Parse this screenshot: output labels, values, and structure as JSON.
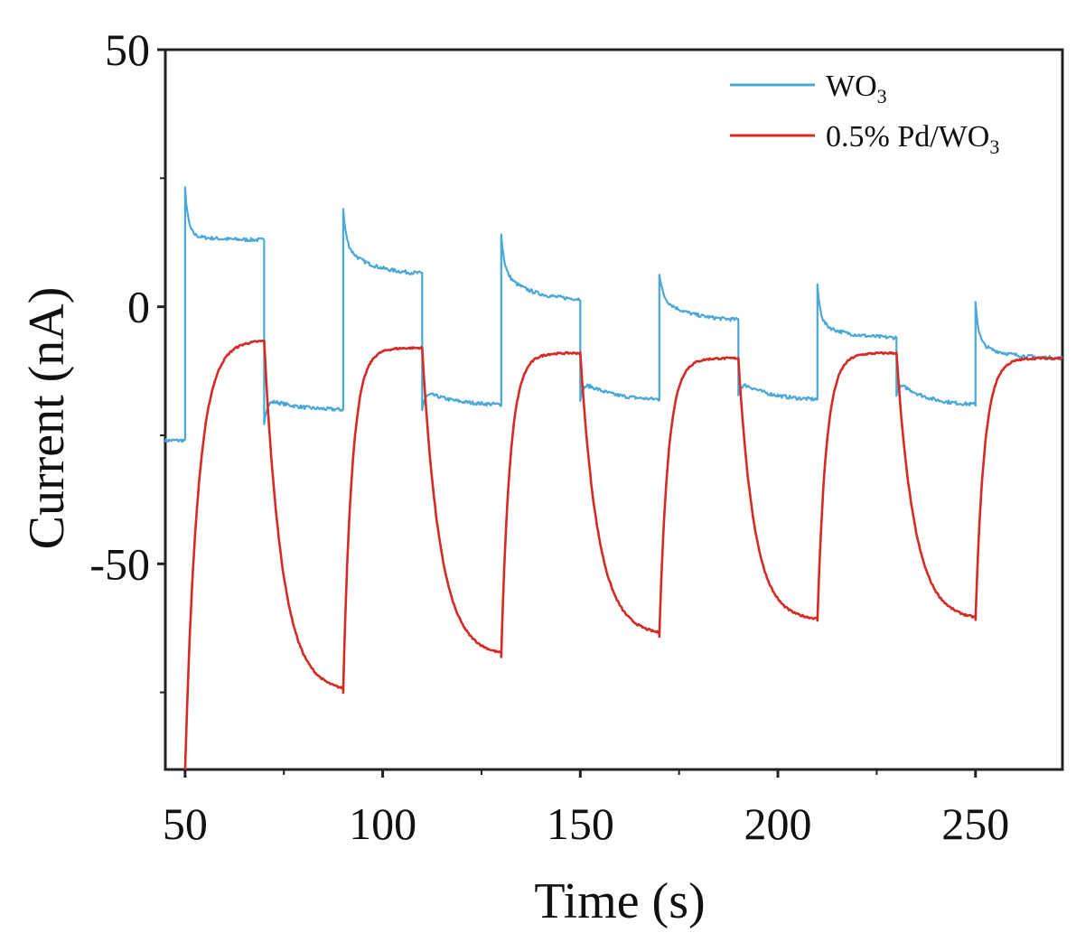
{
  "chart_data": {
    "type": "line",
    "xlabel": "Time (s)",
    "ylabel": "Current (nA)",
    "xlim": [
      45,
      272
    ],
    "ylim": [
      -90,
      50
    ],
    "xticks": [
      50,
      100,
      150,
      200,
      250
    ],
    "yticks": [
      50,
      0,
      -50
    ],
    "x_minor_ticks": [
      75,
      125,
      175,
      225
    ],
    "y_minor_ticks": [
      25,
      -25,
      -75
    ],
    "legend_position": "top-right",
    "light_period_s": 20,
    "series": [
      {
        "name": "WO3",
        "legend_main": "WO",
        "legend_sub": "3",
        "color": "#4aa8d8",
        "segments": [
          {
            "t0": 45,
            "t1": 50,
            "start": -26.0,
            "end": -26.0,
            "spike": 0
          },
          {
            "t0": 50,
            "t1": 70,
            "start": 14.0,
            "end": 13.0,
            "spike": 9
          },
          {
            "t0": 70,
            "t1": 90,
            "start": -17.5,
            "end": -20.0,
            "spike": -5
          },
          {
            "t0": 90,
            "t1": 110,
            "start": 12.0,
            "end": 6.5,
            "spike": 7
          },
          {
            "t0": 110,
            "t1": 130,
            "start": -16.0,
            "end": -19.0,
            "spike": -4
          },
          {
            "t0": 130,
            "t1": 150,
            "start": 7.0,
            "end": 1.5,
            "spike": 7
          },
          {
            "t0": 150,
            "t1": 170,
            "start": -14.0,
            "end": -18.0,
            "spike": -4
          },
          {
            "t0": 170,
            "t1": 190,
            "start": 2.0,
            "end": -2.5,
            "spike": 4.5
          },
          {
            "t0": 190,
            "t1": 210,
            "start": -14.0,
            "end": -18.0,
            "spike": -3
          },
          {
            "t0": 210,
            "t1": 230,
            "start": -3.0,
            "end": -6.0,
            "spike": 7
          },
          {
            "t0": 230,
            "t1": 250,
            "start": -14.0,
            "end": -19.0,
            "spike": -3
          },
          {
            "t0": 250,
            "t1": 272,
            "start": -7.0,
            "end": -10.0,
            "spike": 8
          }
        ]
      },
      {
        "name": "0.5% Pd/WO3",
        "legend_main": "0.5% Pd/WO",
        "legend_sub": "3",
        "color": "#d62a24",
        "segments": [
          {
            "t0": 50,
            "t1": 70,
            "from": -90,
            "plateau": -6.5,
            "tau": 3.2
          },
          {
            "t0": 70,
            "t1": 90,
            "from": -6.5,
            "plateau": -75,
            "tau": 4.5
          },
          {
            "t0": 90,
            "t1": 110,
            "from": -75,
            "plateau": -8.0,
            "tau": 2.2
          },
          {
            "t0": 110,
            "t1": 130,
            "from": -8.0,
            "plateau": -68,
            "tau": 4.5
          },
          {
            "t0": 130,
            "t1": 150,
            "from": -68,
            "plateau": -9.0,
            "tau": 2.2
          },
          {
            "t0": 150,
            "t1": 170,
            "from": -9.0,
            "plateau": -64,
            "tau": 4.5
          },
          {
            "t0": 170,
            "t1": 190,
            "from": -64,
            "plateau": -10.0,
            "tau": 2.2
          },
          {
            "t0": 190,
            "t1": 210,
            "from": -10.0,
            "plateau": -61,
            "tau": 4.0
          },
          {
            "t0": 210,
            "t1": 230,
            "from": -61,
            "plateau": -9.0,
            "tau": 2.2
          },
          {
            "t0": 230,
            "t1": 250,
            "from": -9.0,
            "plateau": -61,
            "tau": 4.5
          },
          {
            "t0": 250,
            "t1": 272,
            "from": -61,
            "plateau": -10.0,
            "tau": 2.2
          }
        ]
      }
    ]
  }
}
